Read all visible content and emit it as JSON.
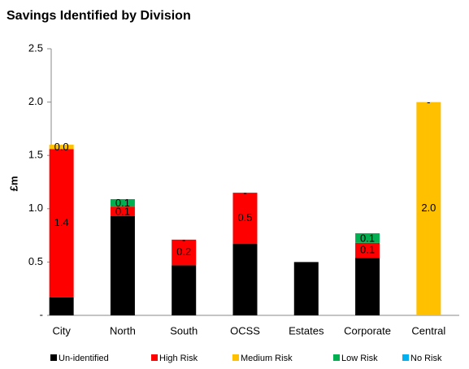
{
  "chart_data": {
    "type": "stacked_bar",
    "title": "Savings Identified by Division",
    "ylabel": "£m",
    "categories": [
      "City",
      "North",
      "South",
      "OCSS",
      "Estates",
      "Corporate",
      "Central"
    ],
    "series": [
      {
        "name": "Un-identified",
        "color": "#000000",
        "values": [
          0.17,
          0.93,
          0.47,
          0.67,
          0.5,
          0.54,
          null
        ],
        "value_labels": [
          "0.2",
          "0.9",
          "0.5",
          "0.7",
          "0.5",
          "0.5",
          null
        ]
      },
      {
        "name": "High Risk",
        "color": "#ff0000",
        "values": [
          1.39,
          0.09,
          0.24,
          0.48,
          null,
          0.14,
          null
        ],
        "value_labels": [
          "1.4",
          "0.1",
          "0.2",
          "0.5",
          null,
          "0.1",
          null
        ]
      },
      {
        "name": "Medium Risk",
        "color": "#ffc000",
        "values": [
          0.04,
          null,
          0,
          0,
          null,
          null,
          2.0
        ],
        "value_labels": [
          "0.0",
          null,
          "-",
          "-",
          null,
          null,
          "2.0"
        ]
      },
      {
        "name": "Low Risk",
        "color": "#00b050",
        "values": [
          null,
          0.07,
          null,
          0,
          null,
          0.09,
          0
        ],
        "value_labels": [
          null,
          "0.1",
          null,
          "-",
          null,
          "0.1",
          "-"
        ]
      },
      {
        "name": "No Risk",
        "color": "#00b0f0",
        "values": [
          null,
          null,
          null,
          null,
          null,
          null,
          null
        ]
      }
    ],
    "ylim": [
      0,
      2.5
    ],
    "yticks": [
      {
        "value": 0,
        "label": "-"
      },
      0.5,
      {
        "value": 1,
        "label": "1.0"
      },
      1.5,
      {
        "value": 2,
        "label": "2.0"
      },
      2.5
    ],
    "grid": false,
    "legend": "bottom"
  }
}
